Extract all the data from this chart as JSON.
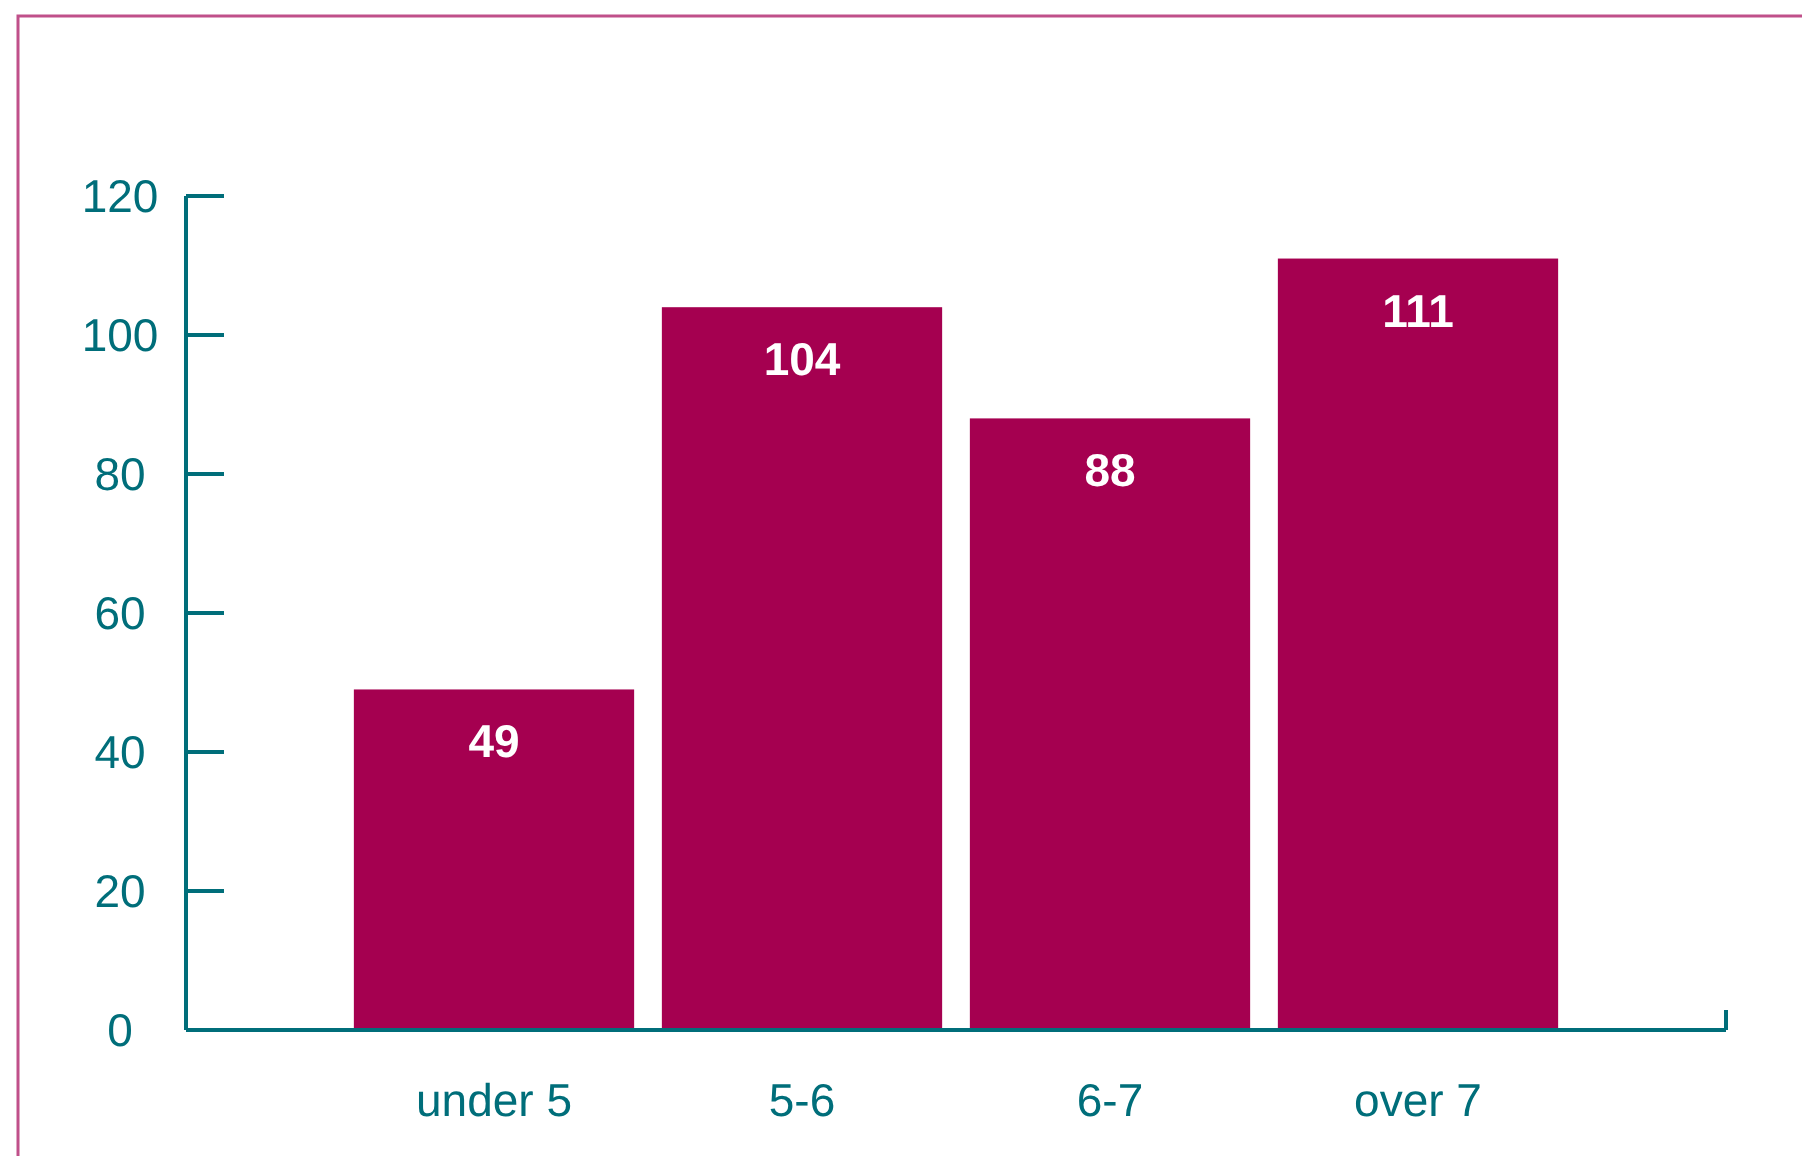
{
  "chart_data": {
    "type": "bar",
    "categories": [
      "under 5",
      "5-6",
      "6-7",
      "over 7"
    ],
    "values": [
      49,
      104,
      88,
      111
    ],
    "color": "#a50050",
    "ylim": [
      0,
      120
    ],
    "yticks": [
      0,
      20,
      40,
      60,
      80,
      100,
      120
    ],
    "data_labels": true,
    "grid": false
  }
}
